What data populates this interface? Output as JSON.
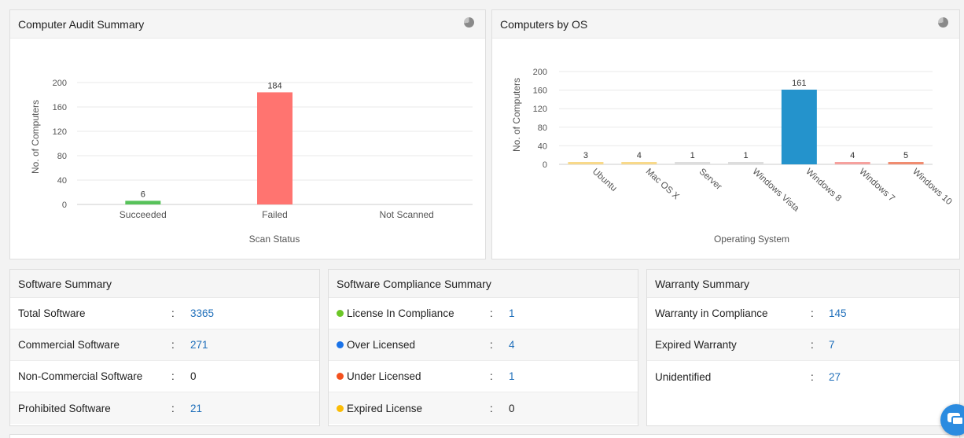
{
  "audit": {
    "title": "Computer Audit Summary",
    "icon": "pie-chart-icon"
  },
  "os": {
    "title": "Computers by OS",
    "icon": "pie-chart-icon"
  },
  "chart_data": [
    {
      "type": "bar",
      "title": "Computer Audit Summary",
      "xlabel": "Scan Status",
      "ylabel": "No. of Computers",
      "categories": [
        "Succeeded",
        "Failed",
        "Not Scanned"
      ],
      "values": [
        6,
        184,
        0
      ],
      "labels": [
        "6",
        "184",
        ""
      ],
      "colors": [
        "#57c25a",
        "#ff7470",
        "#cccccc"
      ],
      "ylim": [
        0,
        200
      ],
      "yticks": [
        0,
        40,
        80,
        120,
        160,
        200
      ],
      "grid": true
    },
    {
      "type": "bar",
      "title": "Computers by OS",
      "xlabel": "Operating System",
      "ylabel": "No. of Computers",
      "categories": [
        "Ubuntu",
        "Mac OS X",
        "Server",
        "Windows Vista",
        "Windows 8",
        "Windows 7",
        "Windows 10"
      ],
      "values": [
        3,
        4,
        1,
        1,
        161,
        4,
        5
      ],
      "labels": [
        "3",
        "4",
        "1",
        "1",
        "161",
        "4",
        "5"
      ],
      "colors": [
        "#f8d98a",
        "#f8d98a",
        "#dddddd",
        "#dddddd",
        "#2493cc",
        "#f6a19e",
        "#f08c70"
      ],
      "ylim": [
        0,
        200
      ],
      "yticks": [
        0,
        40,
        80,
        120,
        160,
        200
      ],
      "grid": true
    }
  ],
  "software": {
    "title": "Software Summary",
    "rows": [
      {
        "label": "Total Software",
        "value": "3365",
        "link": true
      },
      {
        "label": "Commercial Software",
        "value": "271",
        "link": true
      },
      {
        "label": "Non-Commercial Software",
        "value": "0",
        "link": false
      },
      {
        "label": "Prohibited Software",
        "value": "21",
        "link": true
      }
    ]
  },
  "compliance": {
    "title": "Software Compliance Summary",
    "rows": [
      {
        "label": "License In Compliance",
        "value": "1",
        "link": true,
        "dot": "#6cc727"
      },
      {
        "label": "Over Licensed",
        "value": "4",
        "link": true,
        "dot": "#1a73e8"
      },
      {
        "label": "Under Licensed",
        "value": "1",
        "link": true,
        "dot": "#f4511e"
      },
      {
        "label": "Expired License",
        "value": "0",
        "link": false,
        "dot": "#fbbc05"
      }
    ]
  },
  "warranty": {
    "title": "Warranty Summary",
    "rows": [
      {
        "label": "Warranty in Compliance",
        "value": "145",
        "link": true
      },
      {
        "label": "Expired Warranty",
        "value": "7",
        "link": true
      },
      {
        "label": "Unidentified",
        "value": "27",
        "link": true
      }
    ]
  },
  "colon": ":",
  "chat": {
    "icon": "chat-bubble-icon"
  }
}
